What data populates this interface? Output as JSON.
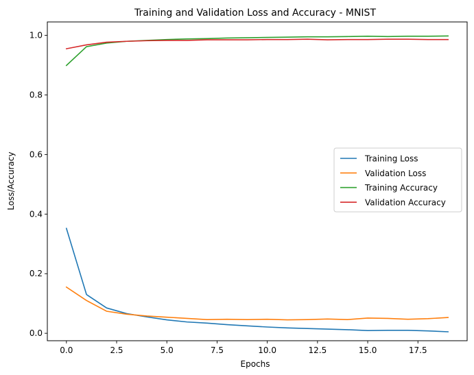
{
  "chart_data": {
    "type": "line",
    "title": "Training and Validation Loss and Accuracy - MNIST",
    "xlabel": "Epochs",
    "ylabel": "Loss/Accuracy",
    "xlim": [
      -0.95,
      19.95
    ],
    "ylim": [
      -0.025,
      1.045
    ],
    "x_ticks": [
      0.0,
      2.5,
      5.0,
      7.5,
      10.0,
      12.5,
      15.0,
      17.5
    ],
    "x_tick_labels": [
      "0.0",
      "2.5",
      "5.0",
      "7.5",
      "10.0",
      "12.5",
      "15.0",
      "17.5"
    ],
    "y_ticks": [
      0.0,
      0.2,
      0.4,
      0.6,
      0.8,
      1.0
    ],
    "y_tick_labels": [
      "0.0",
      "0.2",
      "0.4",
      "0.6",
      "0.8",
      "1.0"
    ],
    "grid": false,
    "legend_position": "center-right",
    "x": [
      0,
      1,
      2,
      3,
      4,
      5,
      6,
      7,
      8,
      9,
      10,
      11,
      12,
      13,
      14,
      15,
      16,
      17,
      18,
      19
    ],
    "series": [
      {
        "name": "Training Loss",
        "color": "#1f77b4",
        "values": [
          0.352,
          0.13,
          0.085,
          0.066,
          0.055,
          0.045,
          0.038,
          0.034,
          0.029,
          0.025,
          0.021,
          0.018,
          0.016,
          0.014,
          0.012,
          0.009,
          0.01,
          0.01,
          0.008,
          0.005
        ]
      },
      {
        "name": "Validation Loss",
        "color": "#ff7f0e",
        "values": [
          0.155,
          0.11,
          0.074,
          0.064,
          0.058,
          0.054,
          0.05,
          0.046,
          0.047,
          0.046,
          0.047,
          0.045,
          0.046,
          0.048,
          0.046,
          0.051,
          0.05,
          0.047,
          0.049,
          0.053
        ]
      },
      {
        "name": "Training Accuracy",
        "color": "#2ca02c",
        "values": [
          0.899,
          0.962,
          0.974,
          0.98,
          0.983,
          0.986,
          0.988,
          0.989,
          0.991,
          0.992,
          0.993,
          0.994,
          0.995,
          0.995,
          0.996,
          0.997,
          0.996,
          0.997,
          0.997,
          0.998
        ]
      },
      {
        "name": "Validation Accuracy",
        "color": "#d62728",
        "values": [
          0.955,
          0.968,
          0.977,
          0.98,
          0.982,
          0.983,
          0.983,
          0.985,
          0.985,
          0.985,
          0.986,
          0.986,
          0.987,
          0.985,
          0.986,
          0.986,
          0.987,
          0.987,
          0.986,
          0.986
        ]
      }
    ]
  }
}
